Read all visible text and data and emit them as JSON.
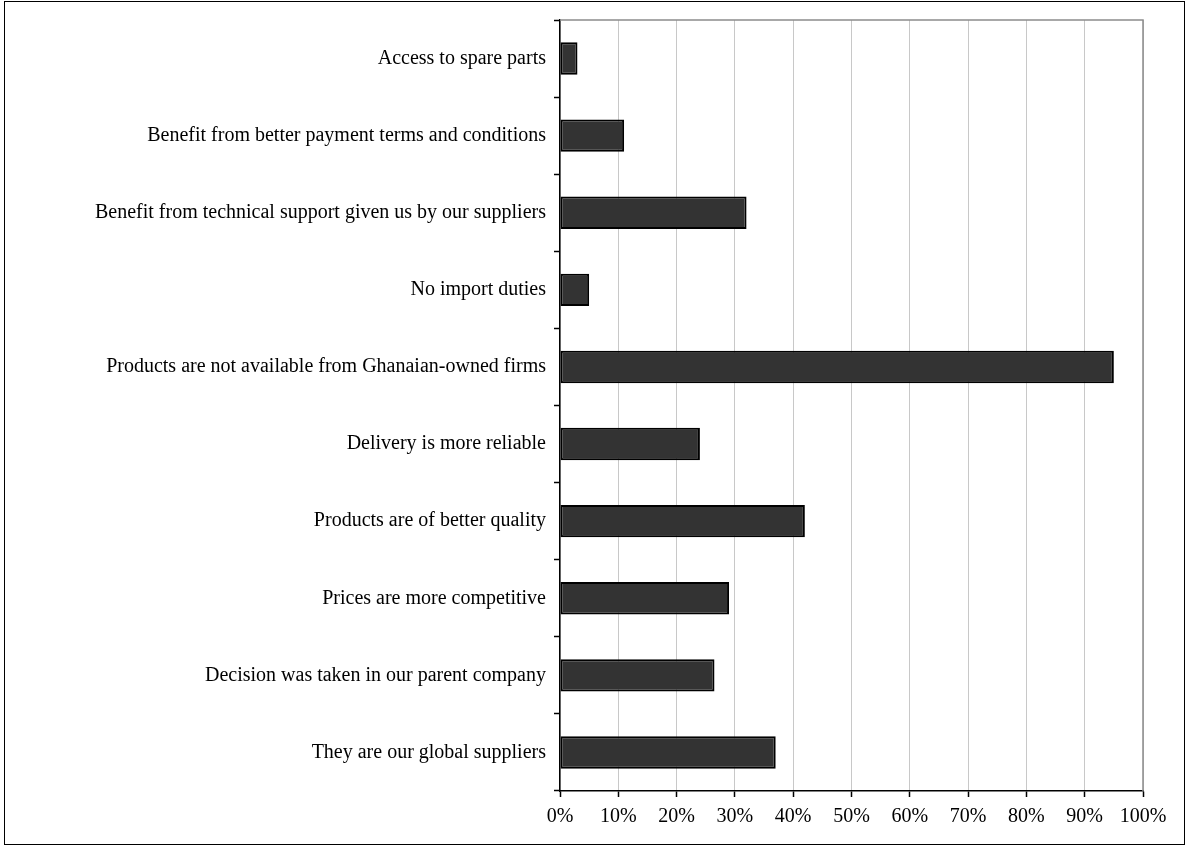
{
  "chart_data": {
    "type": "bar",
    "orientation": "horizontal",
    "categories": [
      "Access to spare parts",
      "Benefit from better payment terms and conditions",
      "Benefit from technical support given us by our suppliers",
      "No import duties",
      "Products are not available from Ghanaian-owned firms",
      "Delivery is more reliable",
      "Products are of better quality",
      "Prices are more competitive",
      "Decision was taken in our parent company",
      "They are our global suppliers"
    ],
    "values": [
      3,
      11,
      32,
      5,
      95,
      24,
      42,
      29,
      26.5,
      37
    ],
    "color": "#333333",
    "xlim": [
      0,
      100
    ],
    "xticks": [
      {
        "value": 0,
        "label": "0%"
      },
      {
        "value": 10,
        "label": "10%"
      },
      {
        "value": 20,
        "label": "20%"
      },
      {
        "value": 30,
        "label": "30%"
      },
      {
        "value": 40,
        "label": "40%"
      },
      {
        "value": 50,
        "label": "50%"
      },
      {
        "value": 60,
        "label": "60%"
      },
      {
        "value": 70,
        "label": "70%"
      },
      {
        "value": 80,
        "label": "80%"
      },
      {
        "value": 90,
        "label": "90%"
      },
      {
        "value": 100,
        "label": "100%"
      }
    ],
    "grid": "x"
  }
}
